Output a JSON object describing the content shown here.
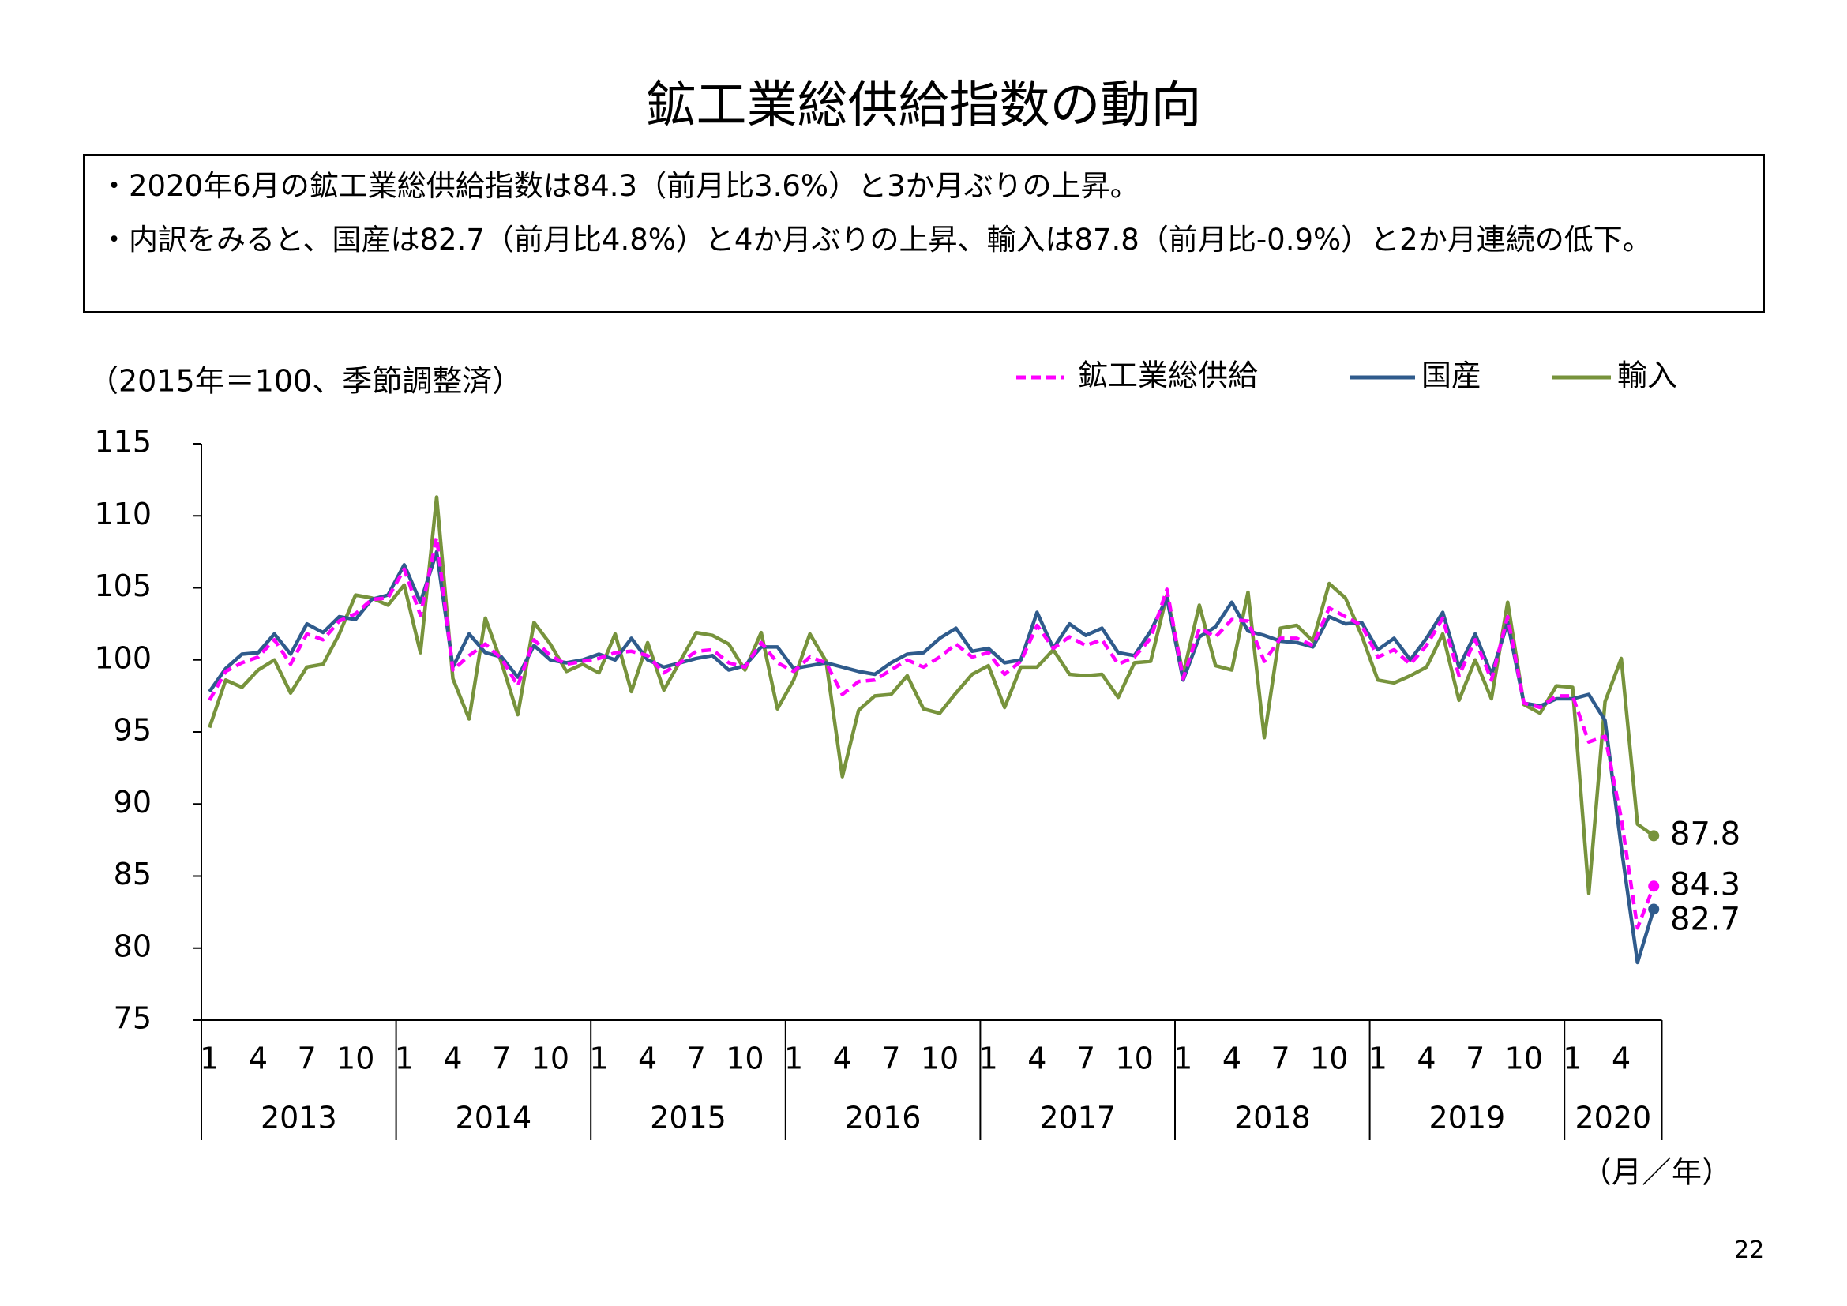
{
  "page_title": "鉱工業総供給指数の動向",
  "summary": [
    "・2020年6月の鉱工業総供給指数は84.3（前月比3.6%）と3か月ぶりの上昇。",
    "・内訳をみると、国産は82.7（前月比4.8%）と4か月ぶりの上昇、輸入は87.8（前月比-0.9%）と2か月連続の低下。"
  ],
  "page_number": "22",
  "chart_data": {
    "type": "line",
    "y_axis_label": "（2015年＝100、季節調整済）",
    "x_axis_label": "（月／年）",
    "categories": [
      "1",
      null,
      null,
      "4",
      null,
      null,
      "7",
      null,
      null,
      "10",
      null,
      null,
      "1",
      null,
      null,
      "4",
      null,
      null,
      "7",
      null,
      null,
      "10",
      null,
      null,
      "1",
      null,
      null,
      "4",
      null,
      null,
      "7",
      null,
      null,
      "10",
      null,
      null,
      "1",
      null,
      null,
      "4",
      null,
      null,
      "7",
      null,
      null,
      "10",
      null,
      null,
      "1",
      null,
      null,
      "4",
      null,
      null,
      "7",
      null,
      null,
      "10",
      null,
      null,
      "1",
      null,
      null,
      "4",
      null,
      null,
      "7",
      null,
      null,
      "10",
      null,
      null,
      "1",
      null,
      null,
      "4",
      null,
      null,
      "7",
      null,
      null,
      "10",
      null,
      null,
      "1",
      null,
      null,
      "4",
      null,
      null
    ],
    "x_groups": [
      "2013",
      "2014",
      "2015",
      "2016",
      "2017",
      "2018",
      "2019",
      "2020"
    ],
    "ylim": [
      75,
      115
    ],
    "yticks": [
      75,
      80,
      85,
      90,
      95,
      100,
      105,
      110,
      115
    ],
    "grid": false,
    "series": [
      {
        "name": "鉱工業総供給",
        "color": "#ff00ff",
        "line_style": "dashed",
        "values": [
          97.2,
          99.2,
          99.8,
          100.2,
          101.4,
          99.7,
          101.8,
          101.4,
          102.7,
          103.2,
          104.2,
          104.3,
          106.3,
          103.1,
          108.5,
          99.3,
          100.3,
          101.1,
          100.1,
          98.2,
          101.4,
          100.3,
          99.7,
          99.9,
          100.1,
          100.5,
          100.6,
          100.3,
          99.1,
          99.8,
          100.6,
          100.7,
          99.8,
          99.5,
          101.2,
          99.8,
          99.2,
          100.2,
          99.8,
          97.6,
          98.5,
          98.6,
          99.3,
          100.0,
          99.5,
          100.2,
          101.1,
          100.2,
          100.5,
          99.0,
          99.9,
          102.4,
          100.8,
          101.6,
          101.0,
          101.4,
          99.7,
          100.2,
          101.5,
          104.9,
          98.7,
          102.2,
          101.6,
          102.8,
          102.7,
          99.9,
          101.5,
          101.5,
          101.0,
          103.6,
          103.0,
          102.4,
          100.2,
          100.7,
          99.7,
          101.0,
          102.9,
          98.9,
          101.4,
          98.6,
          103.0,
          97.0,
          96.7,
          97.5,
          97.5,
          94.3,
          94.7,
          89.0,
          81.4,
          84.3
        ]
      },
      {
        "name": "国産",
        "color": "#2f5b8c",
        "line_style": "solid",
        "values": [
          97.8,
          99.4,
          100.4,
          100.5,
          101.8,
          100.4,
          102.5,
          101.9,
          103.0,
          102.8,
          104.2,
          104.5,
          106.6,
          104.0,
          107.5,
          99.5,
          101.8,
          100.5,
          100.2,
          98.8,
          101.0,
          100.0,
          99.8,
          100.0,
          100.4,
          100.0,
          101.5,
          100.0,
          99.5,
          99.8,
          100.1,
          100.3,
          99.3,
          99.6,
          100.9,
          100.9,
          99.4,
          99.6,
          99.8,
          99.5,
          99.2,
          99.0,
          99.8,
          100.4,
          100.5,
          101.5,
          102.2,
          100.6,
          100.8,
          99.8,
          100.0,
          103.3,
          100.8,
          102.5,
          101.7,
          102.2,
          100.5,
          100.3,
          102.0,
          104.3,
          98.6,
          101.6,
          102.3,
          104.0,
          102.0,
          101.7,
          101.3,
          101.2,
          100.9,
          103.0,
          102.5,
          102.6,
          100.7,
          101.5,
          100.0,
          101.5,
          103.3,
          99.5,
          101.8,
          99.0,
          102.6,
          97.0,
          96.8,
          97.3,
          97.3,
          97.6,
          95.8,
          87.0,
          79.0,
          82.7
        ]
      },
      {
        "name": "輸入",
        "color": "#77933c",
        "line_style": "solid",
        "values": [
          95.3,
          98.6,
          98.1,
          99.3,
          100.0,
          97.7,
          99.5,
          99.7,
          101.8,
          104.5,
          104.3,
          103.8,
          105.2,
          100.5,
          111.3,
          98.7,
          95.9,
          102.9,
          99.8,
          96.2,
          102.6,
          101.1,
          99.2,
          99.7,
          99.1,
          101.8,
          97.8,
          101.2,
          97.9,
          99.9,
          101.9,
          101.7,
          101.1,
          99.3,
          101.9,
          96.6,
          98.6,
          101.8,
          99.9,
          91.9,
          96.5,
          97.5,
          97.6,
          98.9,
          96.6,
          96.3,
          97.7,
          99.0,
          99.6,
          96.7,
          99.5,
          99.5,
          100.7,
          99.0,
          98.9,
          99.0,
          97.4,
          99.8,
          99.9,
          104.5,
          99.0,
          103.8,
          99.6,
          99.3,
          104.7,
          94.6,
          102.2,
          102.4,
          101.3,
          105.3,
          104.3,
          101.7,
          98.6,
          98.4,
          98.9,
          99.5,
          101.8,
          97.2,
          100.0,
          97.3,
          104.0,
          96.9,
          96.3,
          98.2,
          98.1,
          83.8,
          97.1,
          100.1,
          88.6,
          87.8
        ]
      }
    ]
  }
}
